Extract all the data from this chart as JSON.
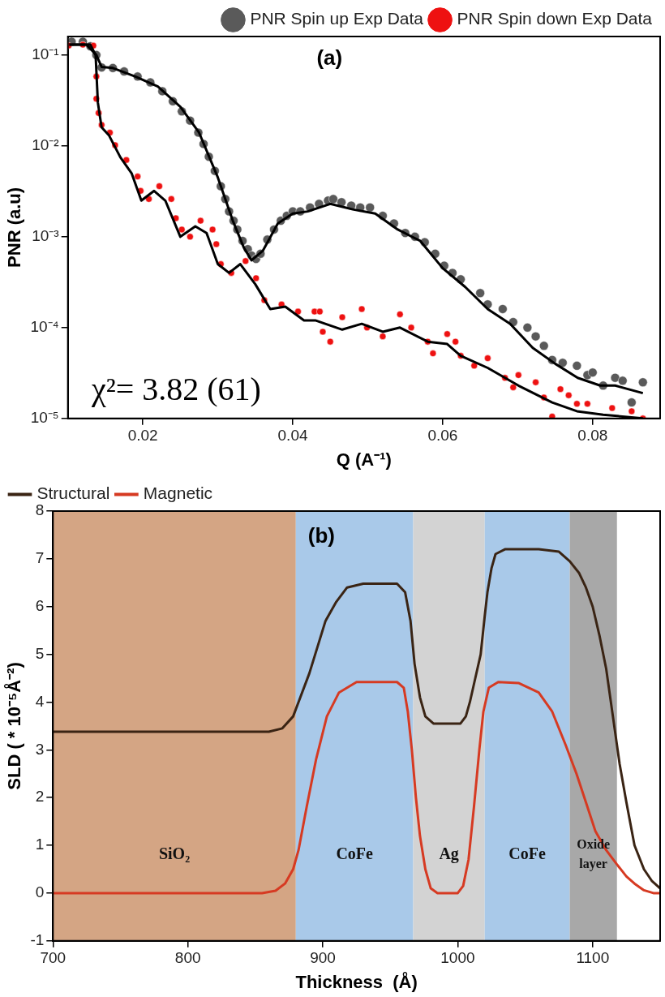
{
  "chart_data": [
    {
      "type": "scatter",
      "xlabel": "Q (A⁻¹)",
      "ylabel": "PNR (a.u)",
      "annotations": [
        "(a)",
        "χ²= 3.82 (61)"
      ],
      "log": "y",
      "grid": false,
      "legend": "top right",
      "xlim": [
        0.01,
        0.089
      ],
      "xticks": [
        0.02,
        0.04,
        0.06,
        0.08
      ],
      "ylim": [
        1e-05,
        0.16
      ],
      "yticks": [
        {
          "value": 1e-05,
          "label": "10⁻⁵"
        },
        {
          "value": 0.0001,
          "label": "10⁻⁴"
        },
        {
          "value": 0.001,
          "label": "10⁻³"
        },
        {
          "value": 0.01,
          "label": "10⁻²"
        },
        {
          "value": 0.1,
          "label": "10⁻¹"
        }
      ],
      "series": [
        {
          "name": "PNR Spin up Exp Data",
          "marker": "circle",
          "color": "#5a5a5a",
          "x": [
            0.0105,
            0.012,
            0.013,
            0.0138,
            0.0145,
            0.016,
            0.0175,
            0.0193,
            0.021,
            0.0226,
            0.024,
            0.0252,
            0.0263,
            0.0274,
            0.0281,
            0.0288,
            0.0296,
            0.0304,
            0.031,
            0.0315,
            0.0321,
            0.0326,
            0.0333,
            0.034,
            0.0345,
            0.0351,
            0.0357,
            0.0366,
            0.0375,
            0.0384,
            0.0392,
            0.04,
            0.041,
            0.0423,
            0.0435,
            0.0447,
            0.0454,
            0.0465,
            0.0478,
            0.049,
            0.0503,
            0.052,
            0.0535,
            0.055,
            0.0563,
            0.0576,
            0.059,
            0.0602,
            0.0613,
            0.0624,
            0.065,
            0.066,
            0.068,
            0.0694,
            0.0713,
            0.0724,
            0.0735,
            0.0746,
            0.076,
            0.0779,
            0.0793,
            0.08,
            0.0814,
            0.083,
            0.084,
            0.0852,
            0.0867
          ],
          "values": [
            0.14,
            0.14,
            0.125,
            0.1,
            0.073,
            0.072,
            0.066,
            0.058,
            0.05,
            0.04,
            0.031,
            0.024,
            0.019,
            0.014,
            0.0105,
            0.0076,
            0.0053,
            0.0036,
            0.0026,
            0.0019,
            0.0015,
            0.0012,
            0.0009,
            0.00073,
            0.00062,
            0.00057,
            0.00065,
            0.00093,
            0.0012,
            0.0015,
            0.0017,
            0.0019,
            0.0019,
            0.0021,
            0.0023,
            0.0025,
            0.0026,
            0.0024,
            0.0022,
            0.0021,
            0.0021,
            0.0017,
            0.0014,
            0.0011,
            0.001,
            0.00087,
            0.00065,
            0.00048,
            0.0004,
            0.00034,
            0.00024,
            0.00018,
            0.00016,
            0.000115,
            0.0001,
            8e-05,
            6.3e-05,
            4.4e-05,
            4.1e-05,
            3.8e-05,
            3e-05,
            3.2e-05,
            2.3e-05,
            2.8e-05,
            2.6e-05,
            1.5e-05,
            2.5e-05
          ]
        },
        {
          "name": "PNR Spin down Exp Data",
          "marker": "circle",
          "color": "#ee1111",
          "x": [
            0.0101,
            0.012,
            0.0134,
            0.0138,
            0.0138,
            0.0141,
            0.0145,
            0.0156,
            0.0163,
            0.0178,
            0.0193,
            0.0197,
            0.0208,
            0.0222,
            0.0238,
            0.0244,
            0.0252,
            0.0263,
            0.0277,
            0.0293,
            0.0298,
            0.0304,
            0.0318,
            0.0337,
            0.0351,
            0.0362,
            0.0385,
            0.0407,
            0.0429,
            0.0436,
            0.044,
            0.045,
            0.0466,
            0.0492,
            0.0499,
            0.052,
            0.0543,
            0.0558,
            0.058,
            0.0587,
            0.0606,
            0.0617,
            0.0624,
            0.0642,
            0.066,
            0.0683,
            0.0694,
            0.0701,
            0.0724,
            0.0735,
            0.0746,
            0.0757,
            0.0768,
            0.0779,
            0.0793,
            0.0826,
            0.0852,
            0.0867
          ],
          "values": [
            0.127,
            0.13,
            0.127,
            0.058,
            0.033,
            0.023,
            0.017,
            0.014,
            0.0102,
            0.007,
            0.0046,
            0.0032,
            0.0026,
            0.0036,
            0.0026,
            0.0016,
            0.0012,
            0.001,
            0.0015,
            0.0012,
            0.00083,
            0.0005,
            0.0004,
            0.00054,
            0.00035,
            0.0002,
            0.00018,
            0.00015,
            0.00015,
            0.00015,
            9e-05,
            7e-05,
            0.00013,
            0.00016,
            0.0001,
            8e-05,
            0.00014,
            0.0001,
            7e-05,
            5.2e-05,
            8.5e-05,
            7e-05,
            4.9e-05,
            3.8e-05,
            4.6e-05,
            2.8e-05,
            2.2e-05,
            3e-05,
            2.5e-05,
            1.7e-05,
            1.05e-05,
            2.1e-05,
            1.8e-05,
            1.45e-05,
            1.45e-05,
            1.3e-05,
            1.2e-05,
            1e-05
          ]
        },
        {
          "type": "line",
          "marker": "none",
          "color": "#000000",
          "x": [
            0.0102,
            0.0125,
            0.0138,
            0.0145,
            0.016,
            0.019,
            0.022,
            0.025,
            0.0275,
            0.03,
            0.032,
            0.0335,
            0.0345,
            0.036,
            0.038,
            0.04,
            0.042,
            0.045,
            0.048,
            0.051,
            0.054,
            0.057,
            0.06,
            0.063,
            0.066,
            0.069,
            0.072,
            0.075,
            0.078,
            0.081,
            0.083,
            0.0867
          ],
          "values": [
            0.13,
            0.13,
            0.1,
            0.074,
            0.072,
            0.058,
            0.045,
            0.027,
            0.014,
            0.0045,
            0.0015,
            0.00075,
            0.00055,
            0.0007,
            0.0014,
            0.0018,
            0.0019,
            0.0023,
            0.002,
            0.0018,
            0.0012,
            0.0009,
            0.00045,
            0.00028,
            0.00016,
            0.00011,
            6e-05,
            4e-05,
            2.8e-05,
            2.3e-05,
            2.3e-05,
            1.9e-05
          ]
        },
        {
          "type": "line",
          "marker": "none",
          "color": "#000000",
          "x": [
            0.0102,
            0.013,
            0.0137,
            0.014,
            0.0145,
            0.0155,
            0.017,
            0.0185,
            0.0198,
            0.0215,
            0.023,
            0.025,
            0.027,
            0.0285,
            0.03,
            0.0315,
            0.033,
            0.035,
            0.037,
            0.039,
            0.0415,
            0.043,
            0.0466,
            0.0492,
            0.052,
            0.0543,
            0.058,
            0.0606,
            0.0624,
            0.066,
            0.0701,
            0.0746,
            0.0779,
            0.0814,
            0.0867
          ],
          "values": [
            0.13,
            0.13,
            0.1,
            0.03,
            0.016,
            0.013,
            0.0075,
            0.005,
            0.0025,
            0.0032,
            0.0025,
            0.001,
            0.0013,
            0.0011,
            0.0005,
            0.0004,
            0.0005,
            0.0003,
            0.00016,
            0.00017,
            0.00012,
            0.00012,
            9.5e-05,
            0.00011,
            9e-05,
            0.0001,
            7e-05,
            6.6e-05,
            4.9e-05,
            3.6e-05,
            2.3e-05,
            1.5e-05,
            1.2e-05,
            1.1e-05,
            1e-05
          ]
        }
      ]
    },
    {
      "type": "line",
      "xlabel": "Thickness  (Å)",
      "ylabel": "SLD ( * 10⁻⁵Å⁻²)",
      "annotations": [
        "(b)"
      ],
      "grid": false,
      "legend": "top left",
      "marker": "none",
      "xlim": [
        700,
        1150
      ],
      "xticks": [
        700,
        800,
        900,
        1000,
        1100
      ],
      "ylim": [
        -1,
        8
      ],
      "yticks": [
        -1,
        0,
        1,
        2,
        3,
        4,
        5,
        6,
        7,
        8
      ],
      "bands": [
        {
          "axis": "x",
          "from": 700,
          "to": 880,
          "label": "SiO₂",
          "color": "#d4a584"
        },
        {
          "axis": "x",
          "from": 880,
          "to": 967,
          "label": "CoFe",
          "color": "#a9c9e9"
        },
        {
          "axis": "x",
          "from": 967,
          "to": 1020,
          "label": "Ag",
          "color": "#d3d3d3"
        },
        {
          "axis": "x",
          "from": 1020,
          "to": 1083,
          "label": "CoFe",
          "color": "#a9c9e9"
        },
        {
          "axis": "x",
          "from": 1083,
          "to": 1118,
          "label": "Oxide layer",
          "color": "#a8a8a8"
        }
      ],
      "series": [
        {
          "name": "Structural",
          "color": "#3a2414",
          "x": [
            700,
            860,
            870,
            878,
            882,
            890,
            902,
            910,
            918,
            930,
            955,
            961,
            965,
            968,
            972,
            976,
            982,
            1002,
            1006,
            1009,
            1013,
            1017,
            1020,
            1022,
            1025,
            1028,
            1035,
            1060,
            1075,
            1083,
            1090,
            1095,
            1100,
            1105,
            1110,
            1115,
            1120,
            1125,
            1131,
            1138,
            1144,
            1150
          ],
          "values": [
            3.38,
            3.38,
            3.45,
            3.7,
            4.0,
            4.6,
            5.7,
            6.1,
            6.4,
            6.48,
            6.48,
            6.3,
            5.7,
            4.8,
            4.1,
            3.7,
            3.55,
            3.55,
            3.7,
            4.0,
            4.5,
            5.0,
            5.8,
            6.3,
            6.8,
            7.1,
            7.2,
            7.2,
            7.15,
            6.95,
            6.7,
            6.4,
            6.0,
            5.4,
            4.7,
            3.7,
            2.7,
            1.9,
            1.0,
            0.5,
            0.25,
            0.1
          ]
        },
        {
          "name": "Magnetic",
          "color": "#d63a22",
          "x": [
            700,
            855,
            865,
            872,
            878,
            882,
            888,
            895,
            903,
            912,
            925,
            955,
            960,
            963,
            966,
            969,
            972,
            976,
            980,
            985,
            1000,
            1004,
            1008,
            1012,
            1016,
            1019,
            1023,
            1030,
            1045,
            1060,
            1070,
            1080,
            1088,
            1095,
            1102,
            1110,
            1118,
            1125,
            1131,
            1138,
            1145,
            1150
          ],
          "values": [
            0,
            0,
            0.05,
            0.2,
            0.5,
            0.9,
            1.8,
            2.8,
            3.7,
            4.2,
            4.42,
            4.42,
            4.3,
            3.8,
            3.0,
            2.0,
            1.2,
            0.5,
            0.1,
            0,
            0,
            0.15,
            0.7,
            1.8,
            3.0,
            3.8,
            4.3,
            4.42,
            4.4,
            4.2,
            3.8,
            3.1,
            2.5,
            1.9,
            1.3,
            0.9,
            0.6,
            0.35,
            0.2,
            0.06,
            0,
            0
          ]
        }
      ]
    }
  ]
}
